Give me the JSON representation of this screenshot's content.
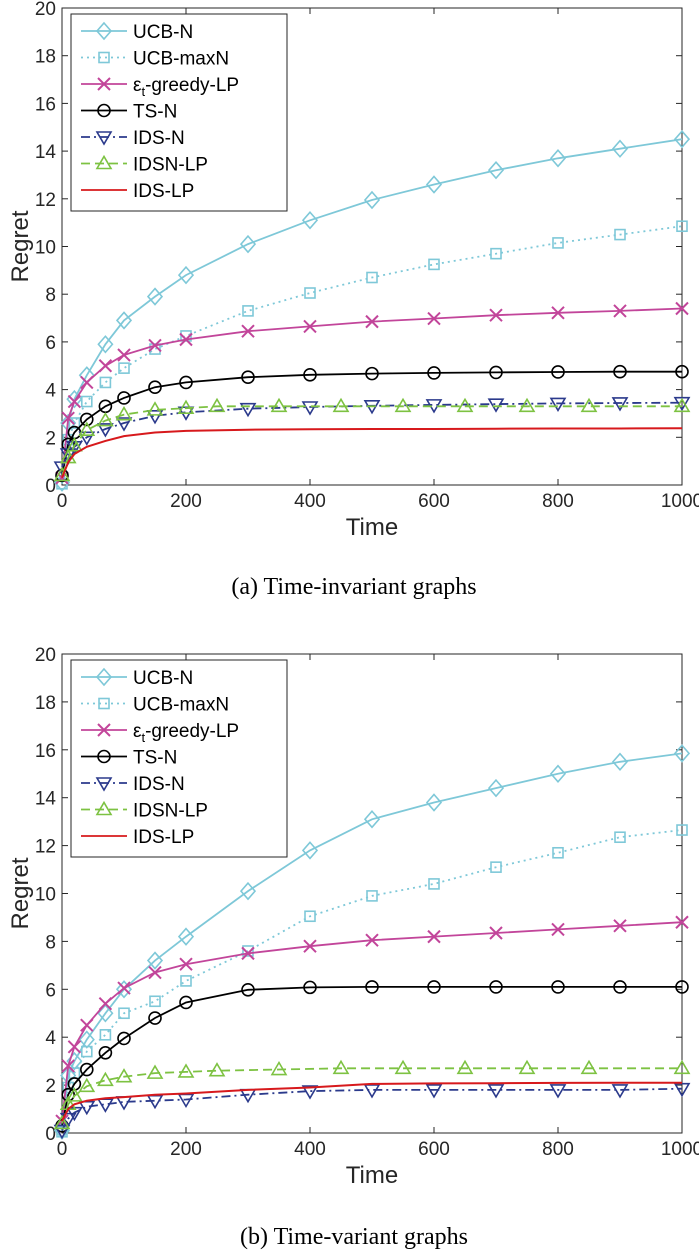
{
  "figure": {
    "chart_data": [
      {
        "type": "line",
        "title": "",
        "caption": "(a) Time-invariant graphs",
        "xlabel": "Time",
        "ylabel": "Regret",
        "xlim": [
          0,
          1000
        ],
        "ylim": [
          0,
          20
        ],
        "xticks": [
          "0",
          "200",
          "400",
          "600",
          "800",
          "1000"
        ],
        "yticks": [
          "0",
          "2",
          "4",
          "6",
          "8",
          "10",
          "12",
          "14",
          "16",
          "18",
          "20"
        ],
        "legend_position": "top-left",
        "series": [
          {
            "name": "UCB-N",
            "color": "#7ec8d8",
            "marker": "diamond",
            "linestyle": "solid",
            "x": [
              0,
              10,
              20,
              40,
              70,
              100,
              150,
              200,
              300,
              400,
              500,
              600,
              700,
              800,
              900,
              1000
            ],
            "y": [
              0.1,
              2.6,
              3.6,
              4.6,
              5.9,
              6.9,
              7.9,
              8.8,
              10.1,
              11.1,
              11.95,
              12.6,
              13.2,
              13.7,
              14.1,
              14.5
            ]
          },
          {
            "name": "UCB-maxN",
            "color": "#7ec8d8",
            "marker": "square",
            "linestyle": "dotted",
            "x": [
              0,
              10,
              20,
              40,
              70,
              100,
              150,
              200,
              300,
              400,
              500,
              600,
              700,
              800,
              900,
              1000
            ],
            "y": [
              0.05,
              1.9,
              2.6,
              3.5,
              4.3,
              4.9,
              5.7,
              6.25,
              7.3,
              8.05,
              8.7,
              9.25,
              9.7,
              10.15,
              10.5,
              10.85
            ]
          },
          {
            "name": "ε_t-greedy-LP",
            "color": "#c2459a",
            "marker": "x",
            "linestyle": "solid",
            "x": [
              0,
              10,
              20,
              40,
              70,
              100,
              150,
              200,
              300,
              400,
              500,
              600,
              700,
              800,
              900,
              1000
            ],
            "y": [
              0.3,
              2.8,
              3.5,
              4.3,
              5.0,
              5.45,
              5.85,
              6.1,
              6.45,
              6.65,
              6.85,
              6.98,
              7.12,
              7.22,
              7.3,
              7.4
            ]
          },
          {
            "name": "TS-N",
            "color": "#000000",
            "marker": "circle",
            "linestyle": "solid",
            "x": [
              0,
              10,
              20,
              40,
              70,
              100,
              150,
              200,
              300,
              400,
              500,
              600,
              700,
              800,
              900,
              1000
            ],
            "y": [
              0.4,
              1.7,
              2.2,
              2.75,
              3.3,
              3.65,
              4.1,
              4.3,
              4.52,
              4.62,
              4.67,
              4.7,
              4.72,
              4.74,
              4.75,
              4.75
            ]
          },
          {
            "name": "IDS-N",
            "color": "#2b3a8c",
            "marker": "triangle-down",
            "linestyle": "dashdot",
            "x": [
              0,
              10,
              20,
              40,
              70,
              100,
              150,
              200,
              300,
              400,
              500,
              600,
              700,
              800,
              900,
              1000
            ],
            "y": [
              0.75,
              1.3,
              1.6,
              2.0,
              2.35,
              2.6,
              2.9,
              3.05,
              3.2,
              3.27,
              3.32,
              3.36,
              3.39,
              3.42,
              3.44,
              3.45
            ]
          },
          {
            "name": "IDSN-LP",
            "color": "#7dc242",
            "marker": "triangle-up",
            "linestyle": "dashed",
            "x": [
              0,
              10,
              20,
              40,
              70,
              100,
              150,
              200,
              250,
              350,
              450,
              550,
              650,
              750,
              850,
              1000
            ],
            "y": [
              0.4,
              1.15,
              1.65,
              2.3,
              2.7,
              2.95,
              3.15,
              3.22,
              3.3,
              3.3,
              3.3,
              3.3,
              3.3,
              3.3,
              3.3,
              3.3
            ]
          },
          {
            "name": "IDS-LP",
            "color": "#d7191c",
            "marker": "none",
            "linestyle": "solid",
            "x": [
              0,
              10,
              20,
              40,
              70,
              100,
              150,
              200,
              300,
              400,
              500,
              600,
              700,
              800,
              900,
              1000
            ],
            "y": [
              0.3,
              0.95,
              1.3,
              1.6,
              1.85,
              2.05,
              2.2,
              2.27,
              2.32,
              2.34,
              2.35,
              2.35,
              2.36,
              2.37,
              2.37,
              2.38
            ]
          }
        ]
      },
      {
        "type": "line",
        "title": "",
        "caption": "(b) Time-variant graphs",
        "xlabel": "Time",
        "ylabel": "Regret",
        "xlim": [
          0,
          1000
        ],
        "ylim": [
          0,
          20
        ],
        "xticks": [
          "0",
          "200",
          "400",
          "600",
          "800",
          "1000"
        ],
        "yticks": [
          "0",
          "2",
          "4",
          "6",
          "8",
          "10",
          "12",
          "14",
          "16",
          "18",
          "20"
        ],
        "legend_position": "top-left",
        "series": [
          {
            "name": "UCB-N",
            "color": "#7ec8d8",
            "marker": "diamond",
            "linestyle": "solid",
            "x": [
              0,
              10,
              20,
              40,
              70,
              100,
              150,
              200,
              300,
              400,
              500,
              600,
              700,
              800,
              900,
              1000
            ],
            "y": [
              0.1,
              2.4,
              3.0,
              3.9,
              5.0,
              6.0,
              7.2,
              8.2,
              10.1,
              11.8,
              13.1,
              13.8,
              14.4,
              15.0,
              15.5,
              15.85
            ]
          },
          {
            "name": "UCB-maxN",
            "color": "#7ec8d8",
            "marker": "square",
            "linestyle": "dotted",
            "x": [
              0,
              10,
              20,
              40,
              70,
              100,
              150,
              200,
              300,
              400,
              500,
              600,
              700,
              800,
              900,
              1000
            ],
            "y": [
              0.05,
              1.9,
              2.5,
              3.4,
              4.1,
              5.0,
              5.5,
              6.35,
              7.6,
              9.05,
              9.9,
              10.4,
              11.1,
              11.7,
              12.35,
              12.65
            ]
          },
          {
            "name": "ε_t-greedy-LP",
            "color": "#c2459a",
            "marker": "x",
            "linestyle": "solid",
            "x": [
              0,
              10,
              20,
              40,
              70,
              100,
              150,
              200,
              300,
              400,
              500,
              600,
              700,
              800,
              900,
              1000
            ],
            "y": [
              0.5,
              2.8,
              3.6,
              4.5,
              5.4,
              6.05,
              6.7,
              7.05,
              7.5,
              7.8,
              8.05,
              8.2,
              8.35,
              8.5,
              8.65,
              8.8
            ]
          },
          {
            "name": "TS-N",
            "color": "#000000",
            "marker": "circle",
            "linestyle": "solid",
            "x": [
              0,
              10,
              20,
              40,
              70,
              100,
              150,
              200,
              300,
              400,
              500,
              600,
              700,
              800,
              900,
              1000
            ],
            "y": [
              0.3,
              1.6,
              2.05,
              2.65,
              3.35,
              3.95,
              4.8,
              5.45,
              5.98,
              6.08,
              6.1,
              6.1,
              6.1,
              6.1,
              6.1,
              6.1
            ]
          },
          {
            "name": "IDS-N",
            "color": "#2b3a8c",
            "marker": "triangle-down",
            "linestyle": "dashdot",
            "x": [
              0,
              10,
              20,
              40,
              70,
              100,
              150,
              200,
              300,
              400,
              500,
              600,
              700,
              800,
              900,
              1000
            ],
            "y": [
              0.1,
              0.6,
              0.85,
              1.1,
              1.2,
              1.3,
              1.35,
              1.4,
              1.6,
              1.75,
              1.8,
              1.8,
              1.8,
              1.8,
              1.8,
              1.85
            ]
          },
          {
            "name": "IDSN-LP",
            "color": "#7dc242",
            "marker": "triangle-up",
            "linestyle": "dashed",
            "x": [
              0,
              10,
              20,
              40,
              70,
              100,
              150,
              200,
              250,
              350,
              450,
              550,
              650,
              750,
              850,
              1000
            ],
            "y": [
              0.4,
              1.2,
              1.55,
              1.95,
              2.2,
              2.35,
              2.5,
              2.55,
              2.6,
              2.65,
              2.7,
              2.7,
              2.7,
              2.7,
              2.7,
              2.7
            ]
          },
          {
            "name": "IDS-LP",
            "color": "#d7191c",
            "marker": "none",
            "linestyle": "solid",
            "x": [
              0,
              10,
              20,
              40,
              70,
              100,
              150,
              200,
              300,
              400,
              500,
              600,
              700,
              800,
              900,
              1000
            ],
            "y": [
              0.5,
              1.0,
              1.2,
              1.35,
              1.45,
              1.5,
              1.6,
              1.65,
              1.8,
              1.9,
              2.05,
              2.07,
              2.08,
              2.09,
              2.1,
              2.1
            ]
          }
        ]
      }
    ]
  }
}
